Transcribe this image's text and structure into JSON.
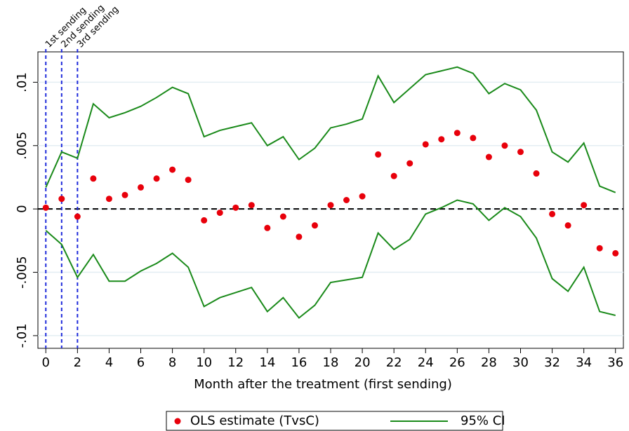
{
  "chart_data": {
    "type": "scatter",
    "xlabel": "Month after the treatment (first sending)",
    "x": [
      0,
      1,
      2,
      3,
      4,
      5,
      6,
      7,
      8,
      9,
      10,
      11,
      12,
      13,
      14,
      15,
      16,
      17,
      18,
      19,
      20,
      21,
      22,
      23,
      24,
      25,
      26,
      27,
      28,
      29,
      30,
      31,
      32,
      33,
      34,
      35,
      36
    ],
    "xlim": [
      -0.5,
      36.5
    ],
    "xticks": [
      0,
      2,
      4,
      6,
      8,
      10,
      12,
      14,
      16,
      18,
      20,
      22,
      24,
      26,
      28,
      30,
      32,
      34,
      36
    ],
    "ylim": [
      -0.011,
      0.0124
    ],
    "yticks": [
      {
        "value": -0.01,
        "label": "-.01"
      },
      {
        "value": -0.005,
        "label": "-.005"
      },
      0,
      {
        "value": 0.005,
        "label": ".005"
      },
      {
        "value": 0.01,
        "label": ".01"
      }
    ],
    "grid": true,
    "refline": 0,
    "vlines": {
      "color": "#1f2bdb",
      "items": [
        {
          "x": 0,
          "label": "1st sending"
        },
        {
          "x": 1,
          "label": "2nd sending"
        },
        {
          "x": 2,
          "label": "3rd sending"
        }
      ]
    },
    "series": [
      {
        "name": "OLS estimate (TvsC)",
        "type": "scatter",
        "color": "#e8000b",
        "values": [
          0.0001,
          0.0008,
          -0.0006,
          0.0024,
          0.0008,
          0.0011,
          0.0017,
          0.0024,
          0.0031,
          0.0023,
          -0.0009,
          -0.0003,
          0.0001,
          0.0003,
          -0.0015,
          -0.0006,
          -0.0022,
          -0.0013,
          0.0003,
          0.0007,
          0.001,
          0.0043,
          0.0026,
          0.0036,
          0.0051,
          0.0055,
          0.006,
          0.0056,
          0.0041,
          0.005,
          0.0045,
          0.0028,
          -0.0004,
          -0.0013,
          0.0003,
          -0.0031,
          -0.0035
        ]
      },
      {
        "name": "95% CI",
        "type": "band-lines",
        "color": "#1a8a1a",
        "upper": [
          0.0017,
          0.0045,
          0.004,
          0.0083,
          0.0072,
          0.0076,
          0.0081,
          0.0088,
          0.0096,
          0.0091,
          0.0057,
          0.0062,
          0.0065,
          0.0068,
          0.005,
          0.0057,
          0.0039,
          0.0048,
          0.0064,
          0.0067,
          0.0071,
          0.0105,
          0.0084,
          0.0095,
          0.0106,
          0.0109,
          0.0112,
          0.0107,
          0.0091,
          0.0099,
          0.0094,
          0.0078,
          0.0045,
          0.0037,
          0.0052,
          0.0018,
          0.0013
        ],
        "lower": [
          -0.0017,
          -0.0028,
          -0.0054,
          -0.0036,
          -0.0057,
          -0.0057,
          -0.0049,
          -0.0043,
          -0.0035,
          -0.0046,
          -0.0077,
          -0.007,
          -0.0066,
          -0.0062,
          -0.0081,
          -0.007,
          -0.0086,
          -0.0076,
          -0.0058,
          -0.0056,
          -0.0054,
          -0.0019,
          -0.0032,
          -0.0024,
          -0.0004,
          0.0001,
          0.0007,
          0.0004,
          -0.0009,
          0.0001,
          -0.0006,
          -0.0023,
          -0.0055,
          -0.0065,
          -0.0046,
          -0.0081,
          -0.0084
        ]
      }
    ]
  }
}
